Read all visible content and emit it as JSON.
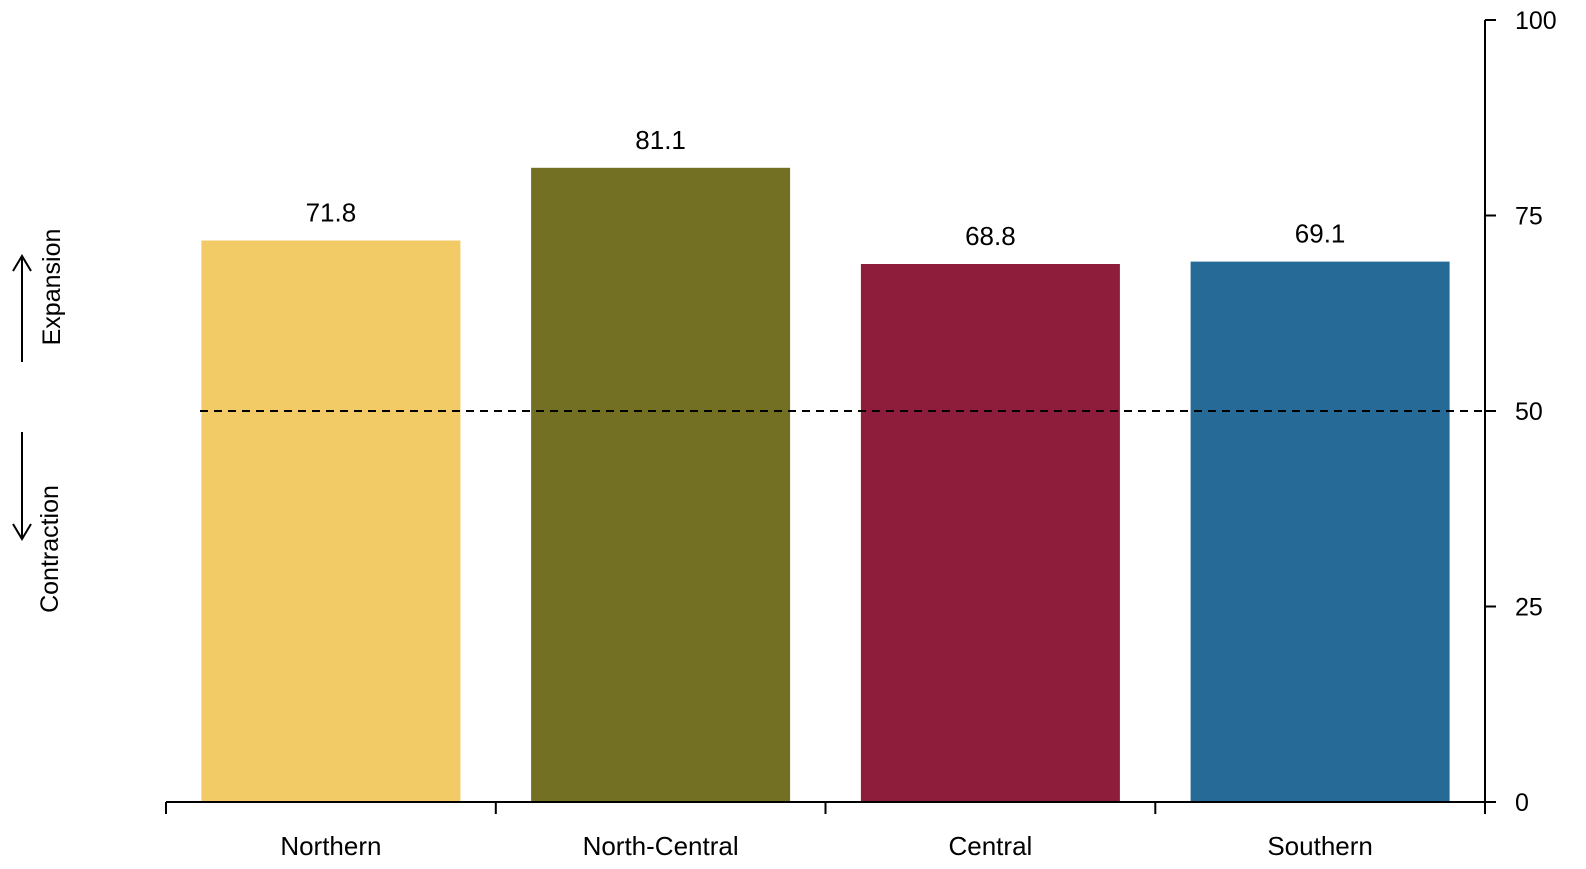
{
  "chart_data": {
    "type": "bar",
    "categories": [
      "Northern",
      "North-Central",
      "Central",
      "Southern"
    ],
    "values": [
      71.8,
      81.1,
      68.8,
      69.1
    ],
    "data_labels": [
      "71.8",
      "81.1",
      "68.8",
      "69.1"
    ],
    "colors": [
      "#F2CB66",
      "#736F23",
      "#8E1C3B",
      "#266B98"
    ],
    "ylim": [
      0,
      100
    ],
    "yticks": [
      0,
      25,
      50,
      75,
      100
    ],
    "ytick_labels": [
      "0",
      "25",
      "50",
      "75",
      "100"
    ],
    "y_axis_side": "right",
    "reference_line": {
      "value": 50,
      "style": "dashed"
    },
    "grid": false,
    "legend": "none",
    "annotations": {
      "expansion": "Expansion",
      "contraction": "Contraction"
    }
  }
}
